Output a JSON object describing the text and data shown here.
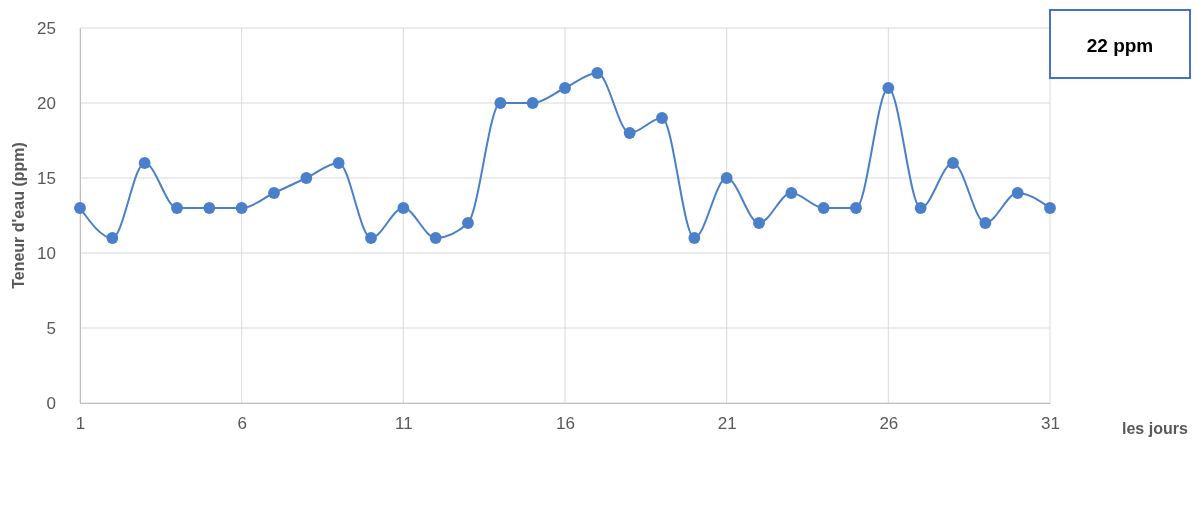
{
  "chart_data": {
    "type": "line",
    "xlabel": "les jours",
    "ylabel": "Teneur d'eau (ppm)",
    "annotations": [
      "22 ppm"
    ],
    "x": [
      1,
      2,
      3,
      4,
      5,
      6,
      7,
      8,
      9,
      10,
      11,
      12,
      13,
      14,
      15,
      16,
      17,
      18,
      19,
      20,
      21,
      22,
      23,
      24,
      25,
      26,
      27,
      28,
      29,
      30,
      31
    ],
    "series": [
      {
        "color": "#4a7fc9",
        "values": [
          13,
          11,
          16,
          13,
          13,
          13,
          14,
          15,
          16,
          11,
          13,
          11,
          12,
          20,
          20,
          21,
          22,
          18,
          19,
          11,
          15,
          12,
          14,
          13,
          13,
          21,
          13,
          16,
          12,
          14,
          13
        ]
      }
    ],
    "xlim": [
      1,
      31
    ],
    "xticks": [
      1,
      6,
      11,
      16,
      21,
      26,
      31
    ],
    "ylim": [
      0,
      25
    ],
    "yticks": [
      0,
      5,
      10,
      15,
      20,
      25
    ],
    "grid": true,
    "marker": "circle",
    "line_style": "solid"
  }
}
